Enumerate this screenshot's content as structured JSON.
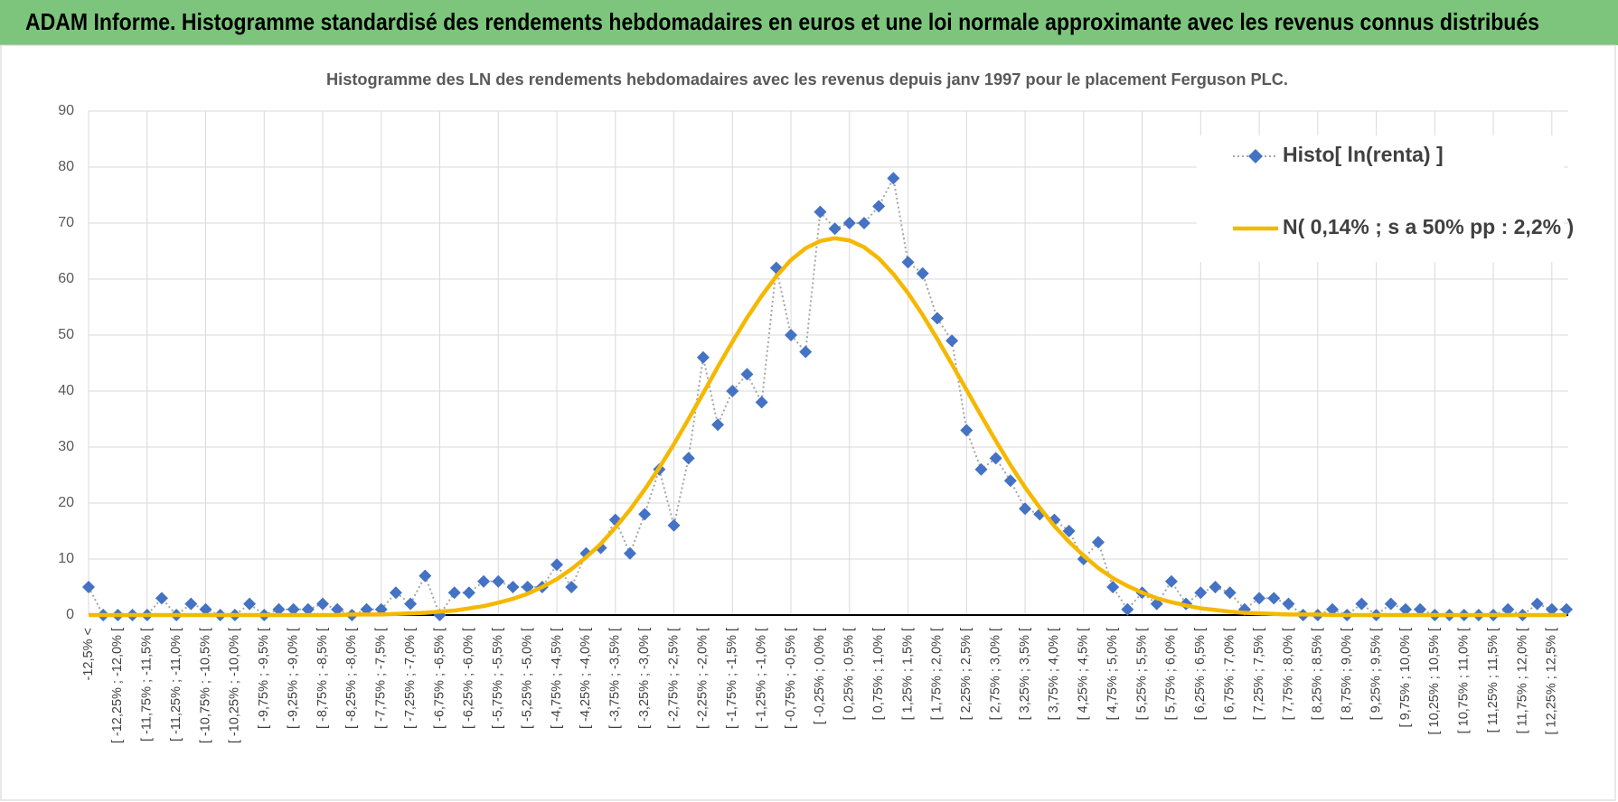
{
  "chart_data": {
    "type": "line",
    "title": "ADAM Informe. Histogramme standardisé des rendements hebdomadaires en euros et une loi normale approximante avec les revenus connus distribués",
    "subtitle": "Histogramme  des LN des rendements hebdomadaires avec les revenus depuis janv 1997 pour le placement Ferguson PLC.",
    "categories": [
      "-12,5% <",
      null,
      "[ -12,25% ; -12,0% [",
      null,
      "[ -11,75% ; -11,5% [",
      null,
      "[ -11,25% ; -11,0% [",
      null,
      "[ -10,75% ; -10,5% [",
      null,
      "[ -10,25% ; -10,0% [",
      null,
      "[ -9,75% ; -9,5% [",
      null,
      "[ -9,25% ; -9,0% [",
      null,
      "[ -8,75% ; -8,5% [",
      null,
      "[ -8,25% ; -8,0% [",
      null,
      "[ -7,75% ; -7,5% [",
      null,
      "[ -7,25% ; -7,0% [",
      null,
      "[ -6,75% ; -6,5% [",
      null,
      "[ -6,25% ; -6,0% [",
      null,
      "[ -5,75% ; -5,5% [",
      null,
      "[ -5,25% ; -5,0% [",
      null,
      "[ -4,75% ; -4,5% [",
      null,
      "[ -4,25% ; -4,0% [",
      null,
      "[ -3,75% ; -3,5% [",
      null,
      "[ -3,25% ; -3,0% [",
      null,
      "[ -2,75% ; -2,5% [",
      null,
      "[ -2,25% ; -2,0% [",
      null,
      "[ -1,75% ; -1,5% [",
      null,
      "[ -1,25% ; -1,0% [",
      null,
      "[ -0,75% ; -0,5% [",
      null,
      "[ -0,25% ; 0,0% [",
      null,
      "[ 0,25% ; 0,5% [",
      null,
      "[ 0,75% ; 1,0% [",
      null,
      "[ 1,25% ; 1,5% [",
      null,
      "[ 1,75% ; 2,0% [",
      null,
      "[ 2,25% ; 2,5% [",
      null,
      "[ 2,75% ; 3,0% [",
      null,
      "[ 3,25% ; 3,5% [",
      null,
      "[ 3,75% ; 4,0% [",
      null,
      "[ 4,25% ; 4,5% [",
      null,
      "[ 4,75% ; 5,0% [",
      null,
      "[ 5,25% ; 5,5% [",
      null,
      "[ 5,75% ; 6,0% [",
      null,
      "[ 6,25% ; 6,5% [",
      null,
      "[ 6,75% ; 7,0% [",
      null,
      "[ 7,25% ; 7,5% [",
      null,
      "[ 7,75% ; 8,0% [",
      null,
      "[ 8,25% ; 8,5% [",
      null,
      "[ 8,75% ; 9,0% [",
      null,
      "[ 9,25% ; 9,5% [",
      null,
      "[ 9,75% ; 10,0% [",
      null,
      "[ 10,25% ; 10,5% [",
      null,
      "[ 10,75% ; 11,0% [",
      null,
      "[ 11,25% ; 11,5% [",
      null,
      "[ 11,75% ; 12,0% [",
      null,
      "[ 12,25% ; 12,5% [",
      null
    ],
    "series": [
      {
        "name": "Histo[ ln(renta) ]",
        "color": "#4472c4",
        "line_color": "#a6a6a6",
        "marker": "diamond",
        "values": [
          5,
          0,
          0,
          0,
          0,
          3,
          0,
          2,
          1,
          0,
          0,
          2,
          0,
          1,
          1,
          1,
          2,
          1,
          0,
          1,
          1,
          4,
          2,
          7,
          0,
          4,
          4,
          6,
          6,
          5,
          5,
          5,
          9,
          5,
          11,
          12,
          17,
          11,
          18,
          26,
          16,
          28,
          46,
          34,
          40,
          43,
          38,
          62,
          50,
          47,
          72,
          69,
          70,
          70,
          73,
          78,
          63,
          61,
          53,
          49,
          33,
          26,
          28,
          24,
          19,
          18,
          17,
          15,
          10,
          13,
          5,
          1,
          4,
          2,
          6,
          2,
          4,
          5,
          4,
          1,
          3,
          3,
          2,
          0,
          0,
          1,
          0,
          2,
          0,
          2,
          1,
          1,
          0,
          0,
          0,
          0,
          0,
          1,
          0,
          2,
          1,
          1
        ]
      },
      {
        "name": "N( 0,14% ; s a 50% pp : 2,2% )",
        "color": "#f5b800",
        "marker": "none",
        "values": [
          0,
          0,
          0,
          0,
          0,
          0,
          0,
          0,
          0,
          0,
          0,
          0,
          0,
          0,
          0,
          0,
          0,
          0,
          0.1,
          0.1,
          0.1,
          0.2,
          0.3,
          0.4,
          0.6,
          0.8,
          1.2,
          1.6,
          2.2,
          2.9,
          3.8,
          5.0,
          6.4,
          8.2,
          10.3,
          12.7,
          15.6,
          18.8,
          22.4,
          26.3,
          30.5,
          35.0,
          39.6,
          44.3,
          48.8,
          53.1,
          57.0,
          60.5,
          63.4,
          65.5,
          66.8,
          67.3,
          66.9,
          65.7,
          63.7,
          60.9,
          57.5,
          53.6,
          49.3,
          44.8,
          40.2,
          35.6,
          31.1,
          26.8,
          22.8,
          19.2,
          15.9,
          13.1,
          10.6,
          8.4,
          6.6,
          5.2,
          4.0,
          3.0,
          2.3,
          1.7,
          1.2,
          0.9,
          0.6,
          0.4,
          0.3,
          0.2,
          0.1,
          0.1,
          0.1,
          0,
          0,
          0,
          0,
          0,
          0,
          0,
          0,
          0,
          0,
          0,
          0,
          0,
          0,
          0,
          0,
          0
        ]
      }
    ],
    "ylim": [
      0,
      90
    ],
    "yticks": [
      0,
      10,
      20,
      30,
      40,
      50,
      60,
      70,
      80,
      90
    ],
    "grid": true,
    "legend": "top-right"
  }
}
